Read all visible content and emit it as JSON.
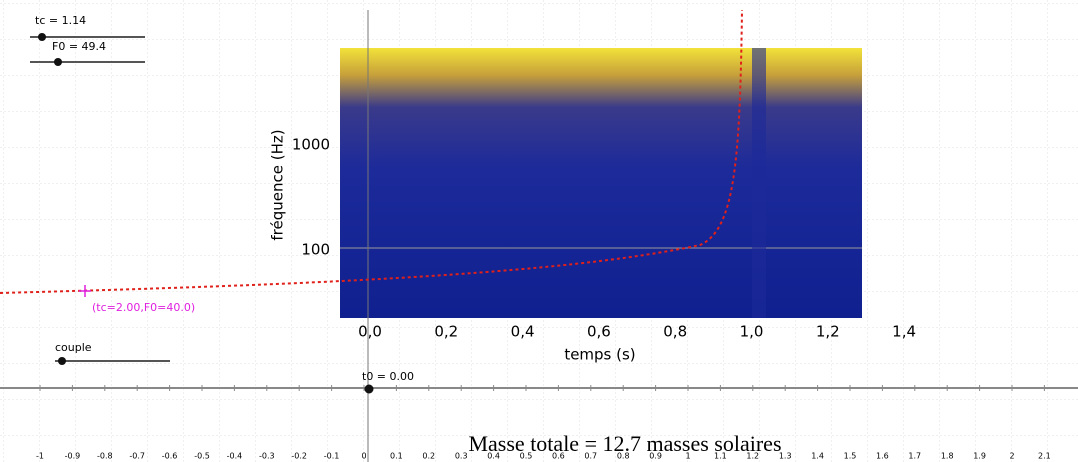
{
  "sliders": [
    {
      "label": "tc = 1.14"
    },
    {
      "label": "F0 = 49.4"
    },
    {
      "label": "couple"
    },
    {
      "label": "t0 = 0.00"
    }
  ],
  "point_label": "(tc=2.00,F0=40.0)",
  "spectrogram": {
    "y_axis_label": "fréquence (Hz)",
    "x_axis_label": "temps (s)",
    "y_tick_labels": [
      "1000",
      "100"
    ],
    "x_tick_labels": [
      "0,0",
      "0,2",
      "0,4",
      "0,6",
      "0,8",
      "1,0",
      "1,2",
      "1,4"
    ]
  },
  "caption": "Masse totale = 12.7 masses solaires",
  "bottom_axis_labels": [
    "-1",
    "-0.9",
    "-0.8",
    "-0.7",
    "-0.6",
    "-0.5",
    "-0.4",
    "-0.3",
    "-0.2",
    "-0.1",
    "0",
    "0.1",
    "0.2",
    "0.3",
    "0.4",
    "0.5",
    "0.6",
    "0.7",
    "0.8",
    "0.9",
    "1",
    "1.1",
    "1.2",
    "1.3",
    "1.4",
    "1.5",
    "1.6",
    "1.7",
    "1.8",
    "1.9",
    "2",
    "2.1"
  ]
}
